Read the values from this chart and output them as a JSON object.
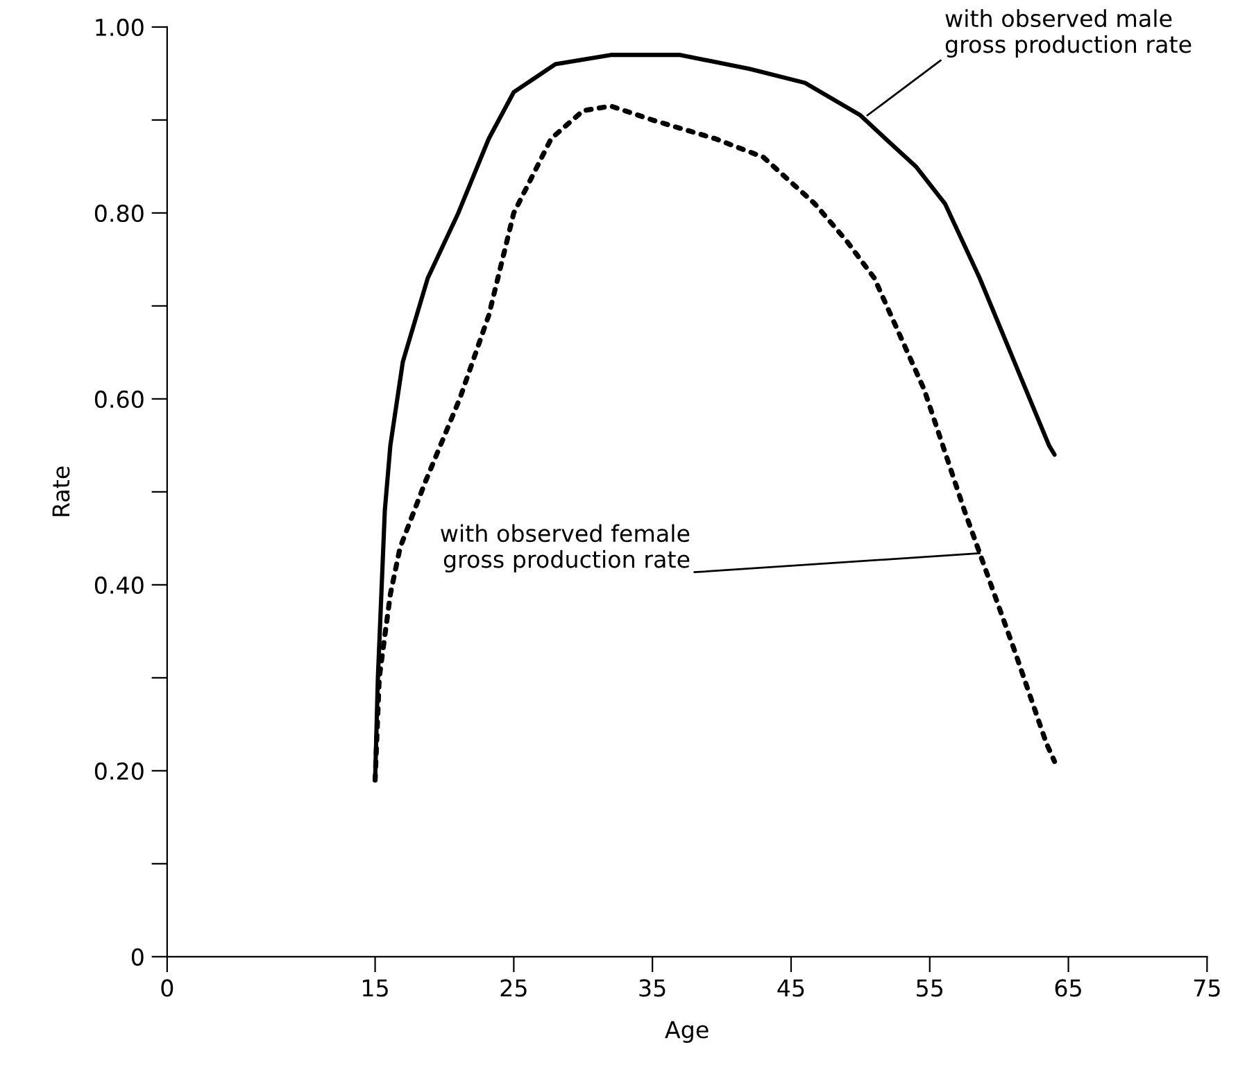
{
  "chart_data": {
    "type": "line",
    "xlabel": "Age",
    "ylabel": "Rate",
    "xlim": [
      0,
      75
    ],
    "ylim": [
      0,
      1.0
    ],
    "xticks": [
      0,
      15,
      25,
      35,
      45,
      55,
      65,
      75
    ],
    "yticks": [
      {
        "value": 0,
        "label": "0"
      },
      {
        "value": 0.1,
        "label": null
      },
      {
        "value": 0.2,
        "label": "0.20"
      },
      {
        "value": 0.3,
        "label": null
      },
      {
        "value": 0.4,
        "label": "0.40"
      },
      {
        "value": 0.5,
        "label": null
      },
      {
        "value": 0.6,
        "label": "0.60"
      },
      {
        "value": 0.7,
        "label": null
      },
      {
        "value": 0.8,
        "label": "0.80"
      },
      {
        "value": 0.9,
        "label": null
      },
      {
        "value": 1.0,
        "label": "1.00"
      }
    ],
    "grid": false,
    "legend": false,
    "marker": "none",
    "series": [
      {
        "color": "#000000",
        "line_style": "solid",
        "x": [
          15,
          15.2,
          15.7,
          16.1,
          17.0,
          18.8,
          21,
          23.2,
          25,
          28,
          32,
          37,
          42,
          46,
          50,
          51.8,
          54,
          56.1,
          58.6,
          61.1,
          63.6,
          64
        ],
        "values": [
          0.19,
          0.3,
          0.48,
          0.55,
          0.64,
          0.73,
          0.8,
          0.88,
          0.93,
          0.96,
          0.97,
          0.97,
          0.955,
          0.94,
          0.905,
          0.88,
          0.85,
          0.81,
          0.73,
          0.64,
          0.55,
          0.54
        ]
      },
      {
        "color": "#000000",
        "line_style": "dotted",
        "x": [
          15,
          15.3,
          16.1,
          16.8,
          18.6,
          21.1,
          23.2,
          25.0,
          27.7,
          30,
          32,
          35,
          39.5,
          43,
          46.7,
          49,
          51.0,
          54.6,
          57.5,
          61.1,
          63.4,
          64
        ],
        "values": [
          0.19,
          0.3,
          0.39,
          0.44,
          0.51,
          0.6,
          0.69,
          0.8,
          0.88,
          0.91,
          0.915,
          0.9,
          0.88,
          0.86,
          0.81,
          0.77,
          0.73,
          0.61,
          0.48,
          0.33,
          0.23,
          0.21
        ]
      }
    ],
    "annotations": [
      {
        "text": "with observed male\ngross production rate",
        "x": 50.5,
        "y": 0.905
      },
      {
        "text": "with observed female\ngross production rate",
        "x": 58.6,
        "y": 0.434
      }
    ]
  }
}
